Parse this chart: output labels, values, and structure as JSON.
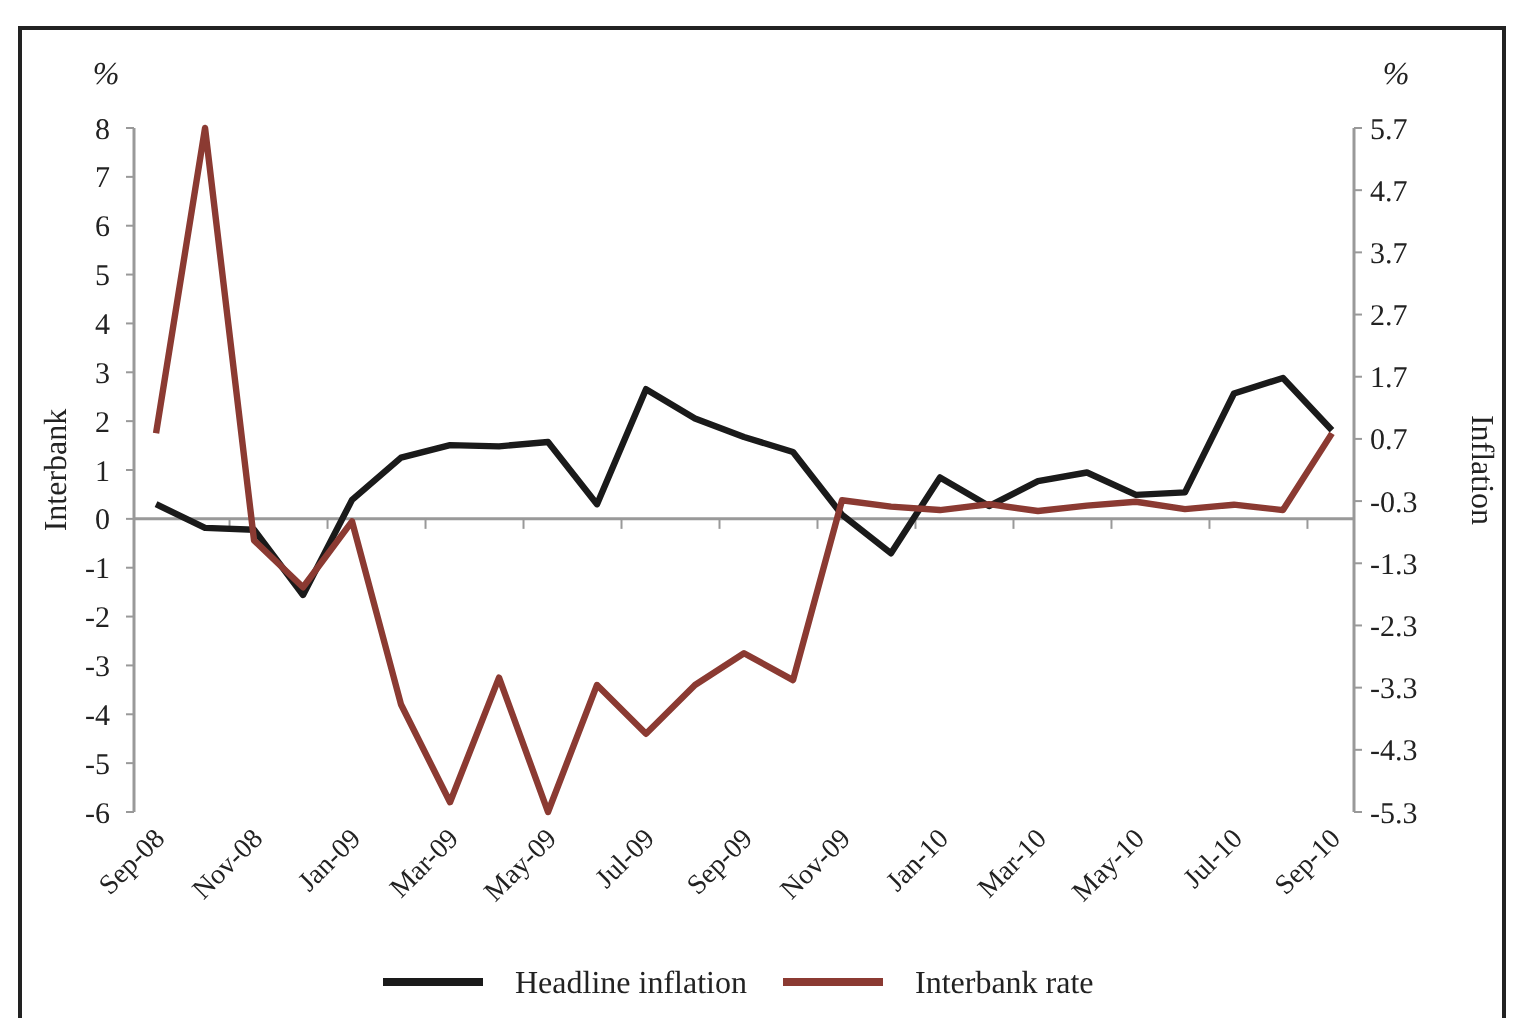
{
  "chart_data": {
    "type": "line",
    "categories": [
      "Sep-08",
      null,
      "Nov-08",
      null,
      "Jan-09",
      null,
      "Mar-09",
      null,
      "May-09",
      null,
      "Jul-09",
      null,
      "Sep-09",
      null,
      "Nov-09",
      null,
      "Jan-10",
      null,
      "Mar-10",
      null,
      "May-10",
      null,
      "Jul-10",
      null,
      "Sep-10"
    ],
    "series": [
      {
        "name": "Headline inflation",
        "color": "#1a1a1a",
        "axis": "y2",
        "values": [
          -0.35,
          -0.73,
          -0.76,
          -1.81,
          -0.28,
          0.4,
          0.6,
          0.58,
          0.65,
          -0.35,
          1.5,
          1.03,
          0.73,
          0.49,
          -0.52,
          -1.14,
          0.08,
          -0.38,
          0.02,
          0.16,
          -0.2,
          -0.16,
          1.43,
          1.68,
          0.84
        ]
      },
      {
        "name": "Interbank rate",
        "color": "#8b3a32",
        "values": [
          1.75,
          8.0,
          -0.44,
          -1.4,
          -0.05,
          -3.8,
          -5.8,
          -3.25,
          -6.0,
          -3.4,
          -4.4,
          -3.4,
          -2.75,
          -3.3,
          0.38,
          0.25,
          0.18,
          0.3,
          0.16,
          0.27,
          0.35,
          0.2,
          0.29,
          0.18,
          1.75
        ]
      }
    ],
    "ylabel": "Interbank",
    "y2label": "Inflation",
    "ylim": [
      -6,
      8
    ],
    "yticks": [
      -6,
      -5,
      -4,
      -3,
      -2,
      -1,
      0,
      1,
      2,
      3,
      4,
      5,
      6,
      7,
      8
    ],
    "y2lim": [
      -5.3,
      5.7
    ],
    "y2ticks": [
      -5.3,
      -4.3,
      -3.3,
      -2.3,
      -1.3,
      -0.3,
      0.7,
      1.7,
      2.7,
      3.7,
      4.7,
      5.7
    ],
    "annotations": [
      "%",
      "%"
    ],
    "legend": "bottom",
    "line_style": "solid",
    "marker": "none"
  }
}
